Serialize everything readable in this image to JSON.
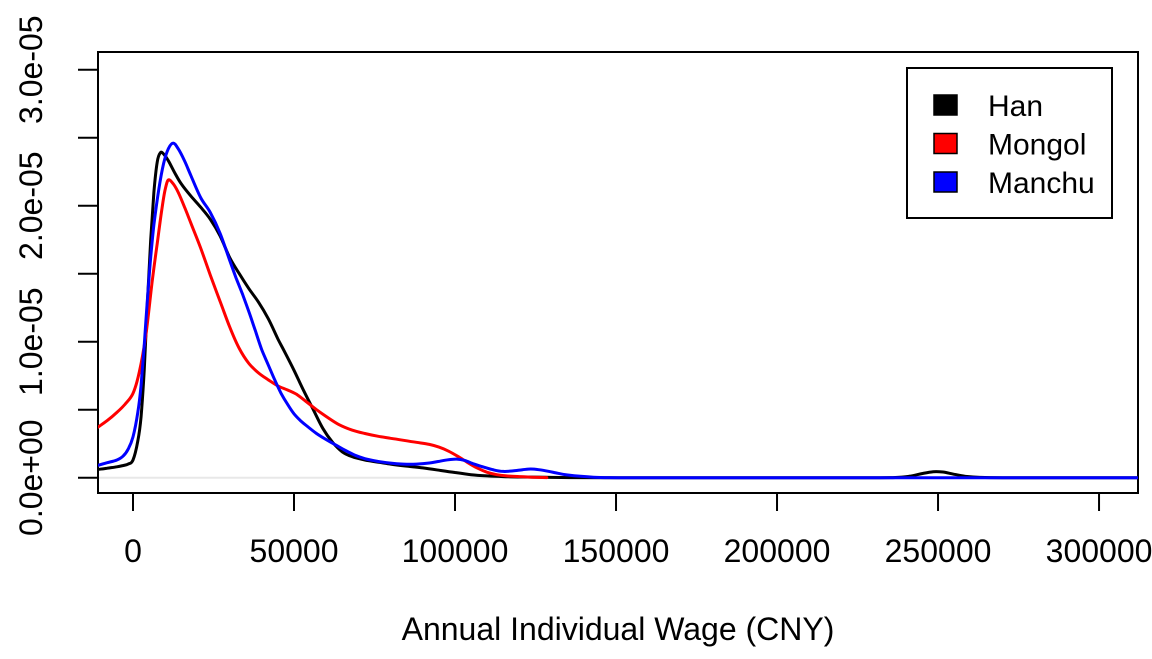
{
  "chart_data": {
    "type": "line",
    "title": "",
    "xlabel": "Annual Individual Wage (CNY)",
    "ylabel": "",
    "y_values_unit": "density in units of 1e-05 per CNY",
    "x_axis": {
      "ticks": [
        0,
        50000,
        100000,
        150000,
        200000,
        250000,
        300000
      ],
      "tick_labels": [
        "0",
        "50000",
        "100000",
        "150000",
        "200000",
        "250000",
        "300000"
      ],
      "xlim": [
        -10870,
        312100
      ]
    },
    "y_axis": {
      "major_ticks": [
        0,
        1,
        2,
        3
      ],
      "major_tick_labels": [
        "0.0e+00",
        "1.0e-05",
        "2.0e-05",
        "3.0e-05"
      ],
      "minor_ticks": [
        0.5,
        1.5,
        2.5
      ],
      "ylim": [
        0,
        3.13
      ]
    },
    "grid": "off",
    "baseline": {
      "y": 0,
      "color": "#E8E8E8"
    },
    "frame_color": "#000000",
    "legend": {
      "position": "topright",
      "entries": [
        {
          "label": "Han",
          "color": "#000000"
        },
        {
          "label": "Mongol",
          "color": "#FF0000"
        },
        {
          "label": "Manchu",
          "color": "#0000FF"
        }
      ]
    },
    "series": [
      {
        "name": "Han",
        "color": "#000000",
        "points": [
          [
            -11000,
            0.06
          ],
          [
            -8000,
            0.07
          ],
          [
            -5000,
            0.08
          ],
          [
            -3000,
            0.09
          ],
          [
            -1500,
            0.1
          ],
          [
            0,
            0.13
          ],
          [
            1500,
            0.27
          ],
          [
            2500,
            0.45
          ],
          [
            3500,
            0.8
          ],
          [
            4500,
            1.3
          ],
          [
            5500,
            1.75
          ],
          [
            6500,
            2.1
          ],
          [
            7500,
            2.32
          ],
          [
            8500,
            2.39
          ],
          [
            9500,
            2.38
          ],
          [
            11000,
            2.33
          ],
          [
            13000,
            2.24
          ],
          [
            15000,
            2.16
          ],
          [
            18000,
            2.07
          ],
          [
            21000,
            1.99
          ],
          [
            24000,
            1.9
          ],
          [
            27000,
            1.78
          ],
          [
            30000,
            1.62
          ],
          [
            33000,
            1.5
          ],
          [
            36000,
            1.39
          ],
          [
            39000,
            1.29
          ],
          [
            42000,
            1.17
          ],
          [
            45000,
            1.02
          ],
          [
            47000,
            0.93
          ],
          [
            50000,
            0.79
          ],
          [
            53000,
            0.64
          ],
          [
            56000,
            0.5
          ],
          [
            59000,
            0.36
          ],
          [
            62000,
            0.26
          ],
          [
            65000,
            0.19
          ],
          [
            68000,
            0.155
          ],
          [
            72000,
            0.13
          ],
          [
            76000,
            0.115
          ],
          [
            80000,
            0.1
          ],
          [
            85000,
            0.085
          ],
          [
            90000,
            0.072
          ],
          [
            95000,
            0.055
          ],
          [
            100000,
            0.038
          ],
          [
            105000,
            0.022
          ],
          [
            110000,
            0.013
          ],
          [
            115000,
            0.008
          ],
          [
            121000,
            0.005
          ],
          [
            128000,
            0.003
          ],
          [
            136000,
            0.001
          ],
          [
            150000,
            0
          ],
          [
            170000,
            0
          ],
          [
            190000,
            0
          ],
          [
            210000,
            0
          ],
          [
            228000,
            0
          ],
          [
            236000,
            0.001
          ],
          [
            241000,
            0.01
          ],
          [
            245000,
            0.03
          ],
          [
            248500,
            0.044
          ],
          [
            251500,
            0.042
          ],
          [
            255000,
            0.025
          ],
          [
            259000,
            0.009
          ],
          [
            263000,
            0.002
          ],
          [
            270000,
            0
          ],
          [
            290000,
            0
          ],
          [
            312000,
            0
          ]
        ]
      },
      {
        "name": "Mongol",
        "color": "#FF0000",
        "points": [
          [
            -11000,
            0.37
          ],
          [
            -8000,
            0.42
          ],
          [
            -5000,
            0.48
          ],
          [
            -2500,
            0.54
          ],
          [
            0,
            0.62
          ],
          [
            2000,
            0.78
          ],
          [
            4000,
            1.05
          ],
          [
            6000,
            1.45
          ],
          [
            7500,
            1.72
          ],
          [
            9000,
            1.98
          ],
          [
            10000,
            2.12
          ],
          [
            11000,
            2.19
          ],
          [
            12500,
            2.16
          ],
          [
            14000,
            2.1
          ],
          [
            16000,
            1.99
          ],
          [
            18000,
            1.87
          ],
          [
            21000,
            1.69
          ],
          [
            24000,
            1.49
          ],
          [
            27000,
            1.3
          ],
          [
            30000,
            1.11
          ],
          [
            33000,
            0.95
          ],
          [
            36000,
            0.84
          ],
          [
            39000,
            0.77
          ],
          [
            42000,
            0.72
          ],
          [
            45000,
            0.675
          ],
          [
            48000,
            0.645
          ],
          [
            51000,
            0.61
          ],
          [
            54000,
            0.555
          ],
          [
            57000,
            0.5
          ],
          [
            60000,
            0.45
          ],
          [
            64000,
            0.39
          ],
          [
            68000,
            0.35
          ],
          [
            72000,
            0.325
          ],
          [
            76000,
            0.305
          ],
          [
            80000,
            0.29
          ],
          [
            84000,
            0.275
          ],
          [
            88000,
            0.26
          ],
          [
            92000,
            0.245
          ],
          [
            95000,
            0.225
          ],
          [
            98000,
            0.195
          ],
          [
            101000,
            0.155
          ],
          [
            104000,
            0.11
          ],
          [
            107000,
            0.07
          ],
          [
            110000,
            0.04
          ],
          [
            113000,
            0.022
          ],
          [
            116000,
            0.013
          ],
          [
            120000,
            0.008
          ],
          [
            124000,
            0.004
          ],
          [
            128500,
            0.001
          ]
        ]
      },
      {
        "name": "Manchu",
        "color": "#0000FF",
        "points": [
          [
            -11000,
            0.09
          ],
          [
            -8000,
            0.11
          ],
          [
            -5000,
            0.13
          ],
          [
            -3000,
            0.16
          ],
          [
            -1500,
            0.21
          ],
          [
            0,
            0.3
          ],
          [
            1500,
            0.48
          ],
          [
            2500,
            0.68
          ],
          [
            3500,
            0.98
          ],
          [
            4500,
            1.32
          ],
          [
            5500,
            1.62
          ],
          [
            6500,
            1.86
          ],
          [
            8000,
            2.12
          ],
          [
            9500,
            2.31
          ],
          [
            11000,
            2.42
          ],
          [
            12500,
            2.46
          ],
          [
            14000,
            2.42
          ],
          [
            16000,
            2.33
          ],
          [
            18000,
            2.22
          ],
          [
            21000,
            2.06
          ],
          [
            24000,
            1.95
          ],
          [
            27000,
            1.8
          ],
          [
            30000,
            1.6
          ],
          [
            32000,
            1.47
          ],
          [
            34000,
            1.35
          ],
          [
            36000,
            1.22
          ],
          [
            38000,
            1.08
          ],
          [
            40000,
            0.94
          ],
          [
            42000,
            0.83
          ],
          [
            44000,
            0.72
          ],
          [
            46000,
            0.62
          ],
          [
            48000,
            0.54
          ],
          [
            50000,
            0.47
          ],
          [
            52000,
            0.42
          ],
          [
            54000,
            0.38
          ],
          [
            57000,
            0.325
          ],
          [
            60000,
            0.28
          ],
          [
            63000,
            0.24
          ],
          [
            66000,
            0.2
          ],
          [
            69000,
            0.165
          ],
          [
            72000,
            0.14
          ],
          [
            76000,
            0.12
          ],
          [
            80000,
            0.107
          ],
          [
            84000,
            0.1
          ],
          [
            88000,
            0.1
          ],
          [
            92000,
            0.108
          ],
          [
            95000,
            0.12
          ],
          [
            98000,
            0.132
          ],
          [
            100500,
            0.137
          ],
          [
            103000,
            0.127
          ],
          [
            106000,
            0.1
          ],
          [
            109000,
            0.077
          ],
          [
            112000,
            0.057
          ],
          [
            115000,
            0.046
          ],
          [
            118000,
            0.05
          ],
          [
            121000,
            0.059
          ],
          [
            123500,
            0.064
          ],
          [
            126000,
            0.059
          ],
          [
            129000,
            0.047
          ],
          [
            132000,
            0.032
          ],
          [
            135000,
            0.02
          ],
          [
            139000,
            0.01
          ],
          [
            143000,
            0.004
          ],
          [
            148000,
            0.001
          ],
          [
            155000,
            0
          ],
          [
            175000,
            0
          ],
          [
            200000,
            0
          ],
          [
            230000,
            0
          ],
          [
            260000,
            0
          ],
          [
            290000,
            0
          ],
          [
            312000,
            0
          ]
        ]
      }
    ]
  }
}
